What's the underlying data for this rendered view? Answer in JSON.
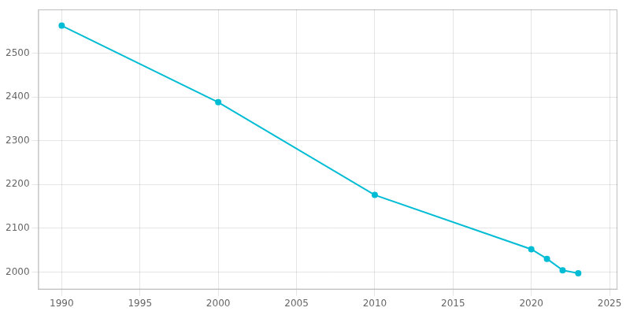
{
  "chart_data": {
    "type": "line",
    "x": [
      1990,
      2000,
      2010,
      2020,
      2021,
      2022,
      2023
    ],
    "values": [
      2563,
      2388,
      2176,
      2052,
      2030,
      2004,
      1997
    ],
    "color": "#00bcd4",
    "marker": "circle",
    "xlim": [
      1988.5,
      2025.5
    ],
    "ylim": [
      1960,
      2600
    ],
    "xticks": [
      1990,
      1995,
      2000,
      2005,
      2010,
      2015,
      2020,
      2025
    ],
    "yticks": [
      2000,
      2100,
      2200,
      2300,
      2400,
      2500
    ],
    "grid": true
  }
}
